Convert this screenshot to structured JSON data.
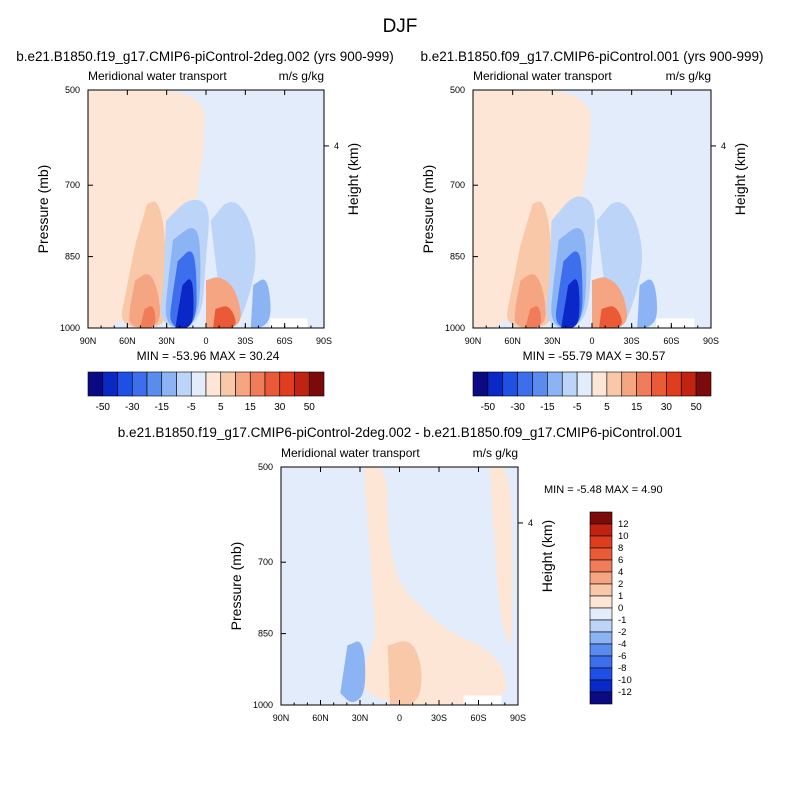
{
  "figure": {
    "title": "DJF",
    "panel_units": "m/s g/kg",
    "panel_variable": "Meridional water transport"
  },
  "chart_data": [
    {
      "type": "heatmap",
      "title": "b.e21.B1850.f19_g17.CMIP6-piControl-2deg.002 (yrs 900-999)",
      "subtitle_left": "Meridional water transport",
      "subtitle_right": "m/s g/kg",
      "xlabel": "",
      "ylabel": "Pressure (mb)",
      "ylabel_right": "Height (km)",
      "x_ticks": [
        "90N",
        "60N",
        "30N",
        "0",
        "30S",
        "60S",
        "90S"
      ],
      "y_ticks": [
        "500",
        "700",
        "850",
        "1000"
      ],
      "y_right_ticks": [
        "4"
      ],
      "stats": "MIN = -53.96  MAX =  30.24",
      "min": -53.96,
      "max": 30.24,
      "colorbar": {
        "orientation": "horizontal",
        "labels": [
          "-50",
          "-30",
          "-15",
          "-5",
          "5",
          "15",
          "30",
          "50"
        ],
        "colors": [
          "#0a0a82",
          "#0a28c8",
          "#1e50e6",
          "#3c6eee",
          "#5a8cf0",
          "#8cb4f5",
          "#bcd4f8",
          "#e2ecfb",
          "#fde6d6",
          "#f8c8a8",
          "#f5a582",
          "#f07c5a",
          "#eb5a36",
          "#e03c1e",
          "#c02410",
          "#7d0a0a"
        ]
      }
    },
    {
      "type": "heatmap",
      "title": "b.e21.B1850.f09_g17.CMIP6-piControl.001 (yrs 900-999)",
      "subtitle_left": "Meridional water transport",
      "subtitle_right": "m/s g/kg",
      "xlabel": "",
      "ylabel": "Pressure (mb)",
      "ylabel_right": "Height (km)",
      "x_ticks": [
        "90N",
        "60N",
        "30N",
        "0",
        "30S",
        "60S",
        "90S"
      ],
      "y_ticks": [
        "500",
        "700",
        "850",
        "1000"
      ],
      "y_right_ticks": [
        "4"
      ],
      "stats": "MIN = -55.79  MAX =  30.57",
      "min": -55.79,
      "max": 30.57,
      "colorbar": {
        "orientation": "horizontal",
        "labels": [
          "-50",
          "-30",
          "-15",
          "-5",
          "5",
          "15",
          "30",
          "50"
        ],
        "colors": [
          "#0a0a82",
          "#0a28c8",
          "#1e50e6",
          "#3c6eee",
          "#5a8cf0",
          "#8cb4f5",
          "#bcd4f8",
          "#e2ecfb",
          "#fde6d6",
          "#f8c8a8",
          "#f5a582",
          "#f07c5a",
          "#eb5a36",
          "#e03c1e",
          "#c02410",
          "#7d0a0a"
        ]
      }
    },
    {
      "type": "heatmap",
      "title": "b.e21.B1850.f19_g17.CMIP6-piControl-2deg.002 - b.e21.B1850.f09_g17.CMIP6-piControl.001",
      "subtitle_left": "Meridional water transport",
      "subtitle_right": "m/s g/kg",
      "xlabel": "",
      "ylabel": "Pressure (mb)",
      "ylabel_right": "Height (km)",
      "x_ticks": [
        "90N",
        "60N",
        "30N",
        "0",
        "30S",
        "60S",
        "90S"
      ],
      "y_ticks": [
        "500",
        "700",
        "850",
        "1000"
      ],
      "y_right_ticks": [
        "4"
      ],
      "stats": "MIN = -5.48  MAX =   4.90",
      "min": -5.48,
      "max": 4.9,
      "colorbar": {
        "orientation": "vertical",
        "labels": [
          "12",
          "10",
          "8",
          "6",
          "4",
          "2",
          "1",
          "0",
          "-1",
          "-2",
          "-4",
          "-6",
          "-8",
          "-10",
          "-12"
        ],
        "colors": [
          "#7d0a0a",
          "#c02410",
          "#e03c1e",
          "#eb5a36",
          "#f07c5a",
          "#f5a582",
          "#f8c8a8",
          "#fde6d6",
          "#e2ecfb",
          "#bcd4f8",
          "#8cb4f5",
          "#5a8cf0",
          "#3c6eee",
          "#1e50e6",
          "#0a28c8",
          "#0a0a82"
        ]
      }
    }
  ]
}
